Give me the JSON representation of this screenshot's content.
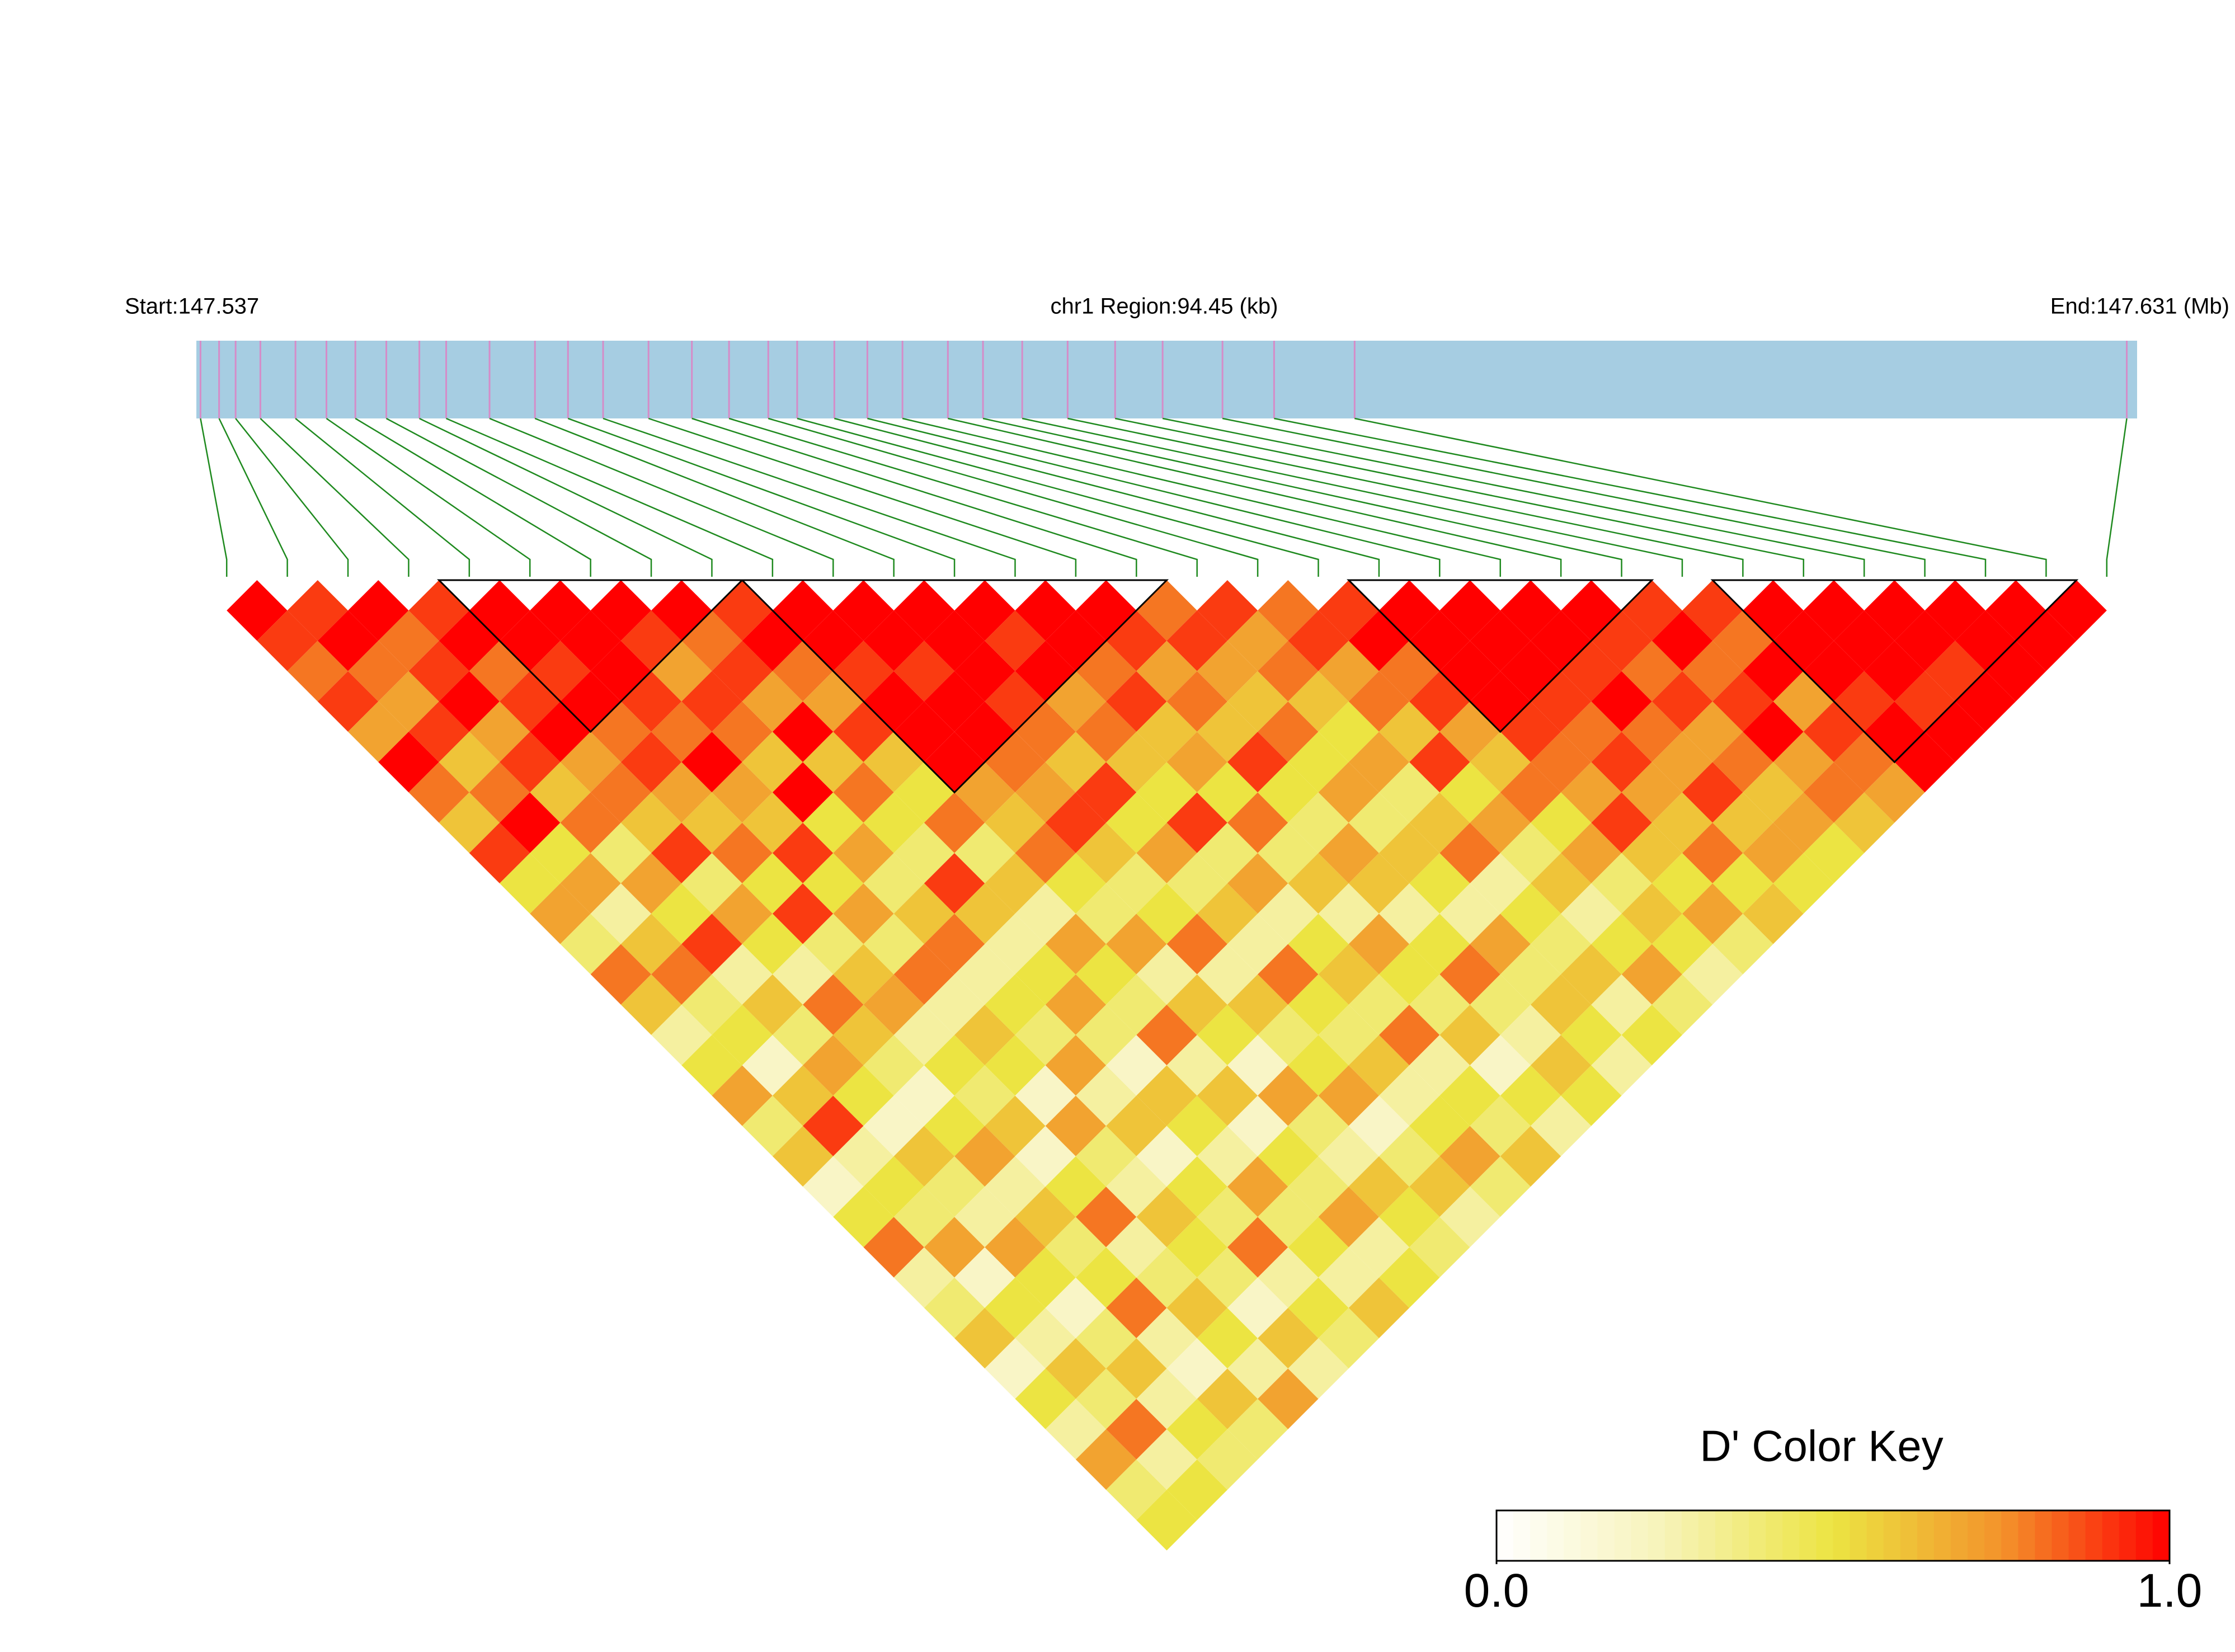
{
  "chart_data": {
    "type": "ld-heatmap",
    "start_label": "Start:147.537",
    "title": "chr1 Region:94.45 (kb)",
    "end_label": "End:147.631 (Mb)",
    "xlim": [
      147.537,
      147.631
    ],
    "x": [
      147.5372,
      147.5381,
      147.5389,
      147.5401,
      147.5418,
      147.5433,
      147.5447,
      147.5462,
      147.5478,
      147.5491,
      147.5512,
      147.5534,
      147.555,
      147.5567,
      147.5589,
      147.561,
      147.5628,
      147.5647,
      147.5661,
      147.5679,
      147.5695,
      147.5712,
      147.5734,
      147.5751,
      147.577,
      147.5792,
      147.5815,
      147.5838,
      147.5867,
      147.5892,
      147.5931,
      147.6305
    ],
    "bar_color": "#a6cde2",
    "tick_color": "#d58cc8",
    "link_color": "#1f8a1f",
    "block_color": "#000000",
    "dprime": [
      [
        1,
        0.9,
        0.8,
        0.9,
        0.7,
        1,
        0.8,
        0.6,
        0.9,
        0.5,
        0.7,
        0.4,
        0.8,
        0.6,
        0.3,
        0.5,
        0.7,
        0.4,
        0.6,
        0.2,
        0.5,
        0.8,
        0.3,
        0.4,
        0.6,
        0.2,
        0.5,
        0.3,
        0.7,
        0.4,
        0.5
      ],
      [
        0.9,
        1,
        0.8,
        0.7,
        0.9,
        0.6,
        0.8,
        1,
        0.5,
        0.7,
        0.3,
        0.6,
        0.8,
        0.4,
        0.5,
        0.2,
        0.6,
        0.9,
        0.3,
        0.5,
        0.4,
        0.7,
        0.2,
        0.5,
        0.3,
        0.6,
        0.4,
        0.8,
        0.3,
        0.5
      ],
      [
        1,
        0.8,
        0.9,
        1,
        0.7,
        0.9,
        0.6,
        0.8,
        0.4,
        0.7,
        0.5,
        0.9,
        0.3,
        0.6,
        0.4,
        0.7,
        0.5,
        0.2,
        0.6,
        0.4,
        0.3,
        0.7,
        0.5,
        0.2,
        0.4,
        0.6,
        0.3,
        0.5,
        0.4
      ],
      [
        0.9,
        1,
        0.8,
        0.9,
        1,
        0.7,
        0.8,
        0.6,
        0.9,
        0.4,
        0.7,
        0.5,
        0.3,
        0.8,
        0.6,
        0.4,
        0.2,
        0.5,
        0.7,
        0.3,
        0.6,
        0.4,
        0.5,
        0.8,
        0.3,
        0.2,
        0.6,
        0.4
      ],
      [
        1,
        1,
        0.9,
        1,
        0.8,
        0.9,
        0.7,
        0.6,
        0.8,
        0.5,
        0.9,
        0.4,
        0.6,
        0.7,
        0.3,
        0.5,
        0.4,
        0.6,
        0.2,
        0.5,
        0.8,
        0.3,
        0.4,
        0.6,
        0.5,
        0.3,
        0.7
      ],
      [
        1,
        1,
        1,
        0.9,
        0.8,
        1,
        0.7,
        0.6,
        0.9,
        0.5,
        0.7,
        0.4,
        0.8,
        0.3,
        0.6,
        0.5,
        0.2,
        0.7,
        0.4,
        0.3,
        0.6,
        0.5,
        0.4,
        0.2,
        0.6,
        0.3
      ],
      [
        1,
        0.9,
        0.7,
        0.9,
        0.8,
        0.6,
        1,
        0.5,
        0.7,
        0.4,
        0.6,
        0.8,
        0.3,
        0.5,
        0.4,
        0.7,
        0.3,
        0.6,
        0.2,
        0.5,
        0.4,
        0.8,
        0.3,
        0.5,
        0.4
      ],
      [
        1,
        0.8,
        0.9,
        0.7,
        1,
        0.6,
        0.8,
        0.5,
        0.4,
        0.9,
        0.6,
        0.3,
        0.5,
        0.7,
        0.4,
        0.2,
        0.6,
        0.5,
        0.3,
        0.7,
        0.4,
        0.5,
        0.3,
        0.6
      ],
      [
        0.9,
        1,
        0.8,
        0.7,
        0.9,
        0.6,
        0.5,
        0.8,
        0.4,
        0.6,
        0.3,
        0.7,
        0.5,
        0.4,
        0.8,
        0.3,
        0.6,
        0.2,
        0.5,
        0.4,
        0.7,
        0.3,
        0.5
      ],
      [
        1,
        1,
        0.9,
        1,
        1,
        1,
        0.7,
        0.6,
        0.8,
        0.5,
        0.4,
        0.7,
        0.3,
        0.6,
        0.5,
        0.2,
        0.7,
        0.4,
        0.3,
        0.6,
        0.5,
        0.4
      ],
      [
        1,
        1,
        0.9,
        1,
        1,
        0.8,
        0.7,
        0.9,
        0.6,
        0.4,
        0.5,
        0.8,
        0.3,
        0.6,
        0.4,
        0.5,
        0.7,
        0.2,
        0.4,
        0.6,
        0.3
      ],
      [
        1,
        1,
        1,
        0.9,
        0.8,
        0.6,
        0.9,
        0.5,
        0.7,
        0.4,
        0.6,
        0.3,
        0.8,
        0.5,
        0.4,
        0.6,
        0.3,
        0.5,
        0.7,
        0.4
      ],
      [
        1,
        0.9,
        1,
        0.7,
        0.8,
        0.6,
        0.5,
        0.9,
        0.4,
        0.7,
        0.3,
        0.5,
        0.6,
        0.4,
        0.8,
        0.3,
        0.5,
        0.4,
        0.6
      ],
      [
        1,
        1,
        0.8,
        0.9,
        0.6,
        0.7,
        0.5,
        0.8,
        0.4,
        0.6,
        0.3,
        0.7,
        0.5,
        0.4,
        0.6,
        0.2,
        0.5,
        0.3
      ],
      [
        1,
        0.9,
        0.7,
        0.8,
        0.6,
        0.9,
        0.5,
        0.4,
        0.7,
        0.6,
        0.3,
        0.5,
        0.8,
        0.4,
        0.3,
        0.6,
        0.5
      ],
      [
        0.8,
        0.9,
        0.7,
        0.6,
        0.8,
        0.5,
        0.7,
        0.4,
        0.6,
        0.5,
        0.3,
        0.7,
        0.4,
        0.6,
        0.5,
        0.3
      ],
      [
        0.9,
        0.7,
        0.8,
        0.6,
        0.5,
        0.7,
        0.4,
        0.6,
        0.8,
        0.3,
        0.5,
        0.4,
        0.6,
        0.3,
        0.5
      ],
      [
        0.8,
        0.9,
        0.7,
        0.8,
        0.6,
        0.9,
        0.5,
        0.7,
        0.4,
        0.6,
        0.3,
        0.5,
        0.7,
        0.4
      ],
      [
        0.9,
        1,
        0.8,
        0.9,
        0.7,
        0.6,
        0.8,
        0.5,
        0.7,
        0.4,
        0.6,
        0.5,
        0.3
      ],
      [
        1,
        1,
        1,
        1,
        0.9,
        0.8,
        0.7,
        0.9,
        0.6,
        0.5,
        0.7,
        0.4
      ],
      [
        1,
        1,
        1,
        0.9,
        0.8,
        0.9,
        0.7,
        0.6,
        0.8,
        0.5,
        0.6
      ],
      [
        1,
        1,
        0.9,
        1,
        0.8,
        0.7,
        0.9,
        0.6,
        0.7,
        0.5
      ],
      [
        1,
        0.9,
        0.8,
        0.9,
        0.7,
        0.8,
        0.6,
        0.7,
        0.5
      ],
      [
        0.9,
        1,
        0.8,
        0.9,
        1,
        0.7,
        0.8,
        0.6
      ],
      [
        0.9,
        0.8,
        1,
        0.7,
        0.9,
        0.8,
        0.7
      ],
      [
        1,
        1,
        1,
        0.9,
        1,
        1
      ],
      [
        1,
        1,
        1,
        0.9,
        1
      ],
      [
        1,
        1,
        0.9,
        1
      ],
      [
        1,
        1,
        1
      ],
      [
        1,
        1
      ],
      [
        1
      ]
    ],
    "blocks": [
      [
        4,
        8
      ],
      [
        9,
        15
      ],
      [
        19,
        23
      ],
      [
        25,
        30
      ]
    ],
    "color_key": {
      "title": "D' Color Key",
      "clim": [
        0,
        1
      ],
      "cticks": [
        {
          "value": 0,
          "label": "0.0"
        },
        {
          "value": 1,
          "label": "1.0"
        }
      ],
      "colors": [
        "#ffffff",
        "#f7f3b8",
        "#ece442",
        "#f3932b",
        "#ff0000"
      ]
    }
  }
}
